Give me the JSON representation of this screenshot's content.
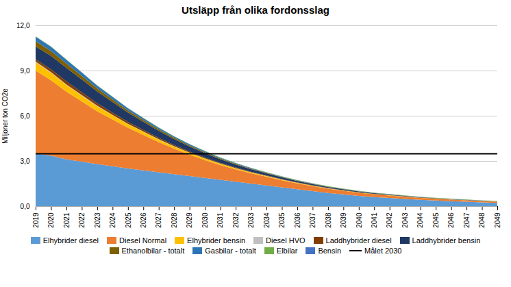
{
  "chart_data": {
    "type": "area",
    "stacked": true,
    "title": "Utsläpp från olika fordonsslag",
    "ylabel": "Miljoner ton CO2e",
    "x": [
      2019,
      2020,
      2021,
      2022,
      2023,
      2024,
      2025,
      2026,
      2027,
      2028,
      2029,
      2030,
      2031,
      2032,
      2033,
      2034,
      2035,
      2036,
      2037,
      2038,
      2039,
      2040,
      2041,
      2042,
      2043,
      2044,
      2045,
      2046,
      2047,
      2048,
      2049
    ],
    "xlim": [
      2019,
      2049
    ],
    "xticks": [
      2019,
      2020,
      2021,
      2022,
      2023,
      2024,
      2025,
      2026,
      2027,
      2028,
      2029,
      2030,
      2031,
      2032,
      2033,
      2034,
      2035,
      2036,
      2037,
      2038,
      2039,
      2040,
      2041,
      2042,
      2043,
      2044,
      2045,
      2046,
      2047,
      2048,
      2049
    ],
    "ylim": [
      0,
      12.0
    ],
    "yticks": [
      {
        "value": 0.0,
        "label": "0,0"
      },
      {
        "value": 3.0,
        "label": "3,0"
      },
      {
        "value": 6.0,
        "label": "6,0"
      },
      {
        "value": 9.0,
        "label": "9,0"
      },
      {
        "value": 12.0,
        "label": "12,0"
      }
    ],
    "grid": true,
    "legend": "bottom",
    "series": [
      {
        "name": "Elhybrider diesel",
        "color": "#5B9BD5",
        "values": [
          3.5,
          3.35,
          3.1,
          2.95,
          2.8,
          2.65,
          2.5,
          2.38,
          2.25,
          2.12,
          2.0,
          1.88,
          1.75,
          1.62,
          1.5,
          1.38,
          1.25,
          1.12,
          1.0,
          0.88,
          0.78,
          0.68,
          0.6,
          0.54,
          0.48,
          0.42,
          0.37,
          0.33,
          0.29,
          0.25,
          0.22
        ]
      },
      {
        "name": "Diesel Normal",
        "color": "#ED7D31",
        "values": [
          5.5,
          5.0,
          4.5,
          4.0,
          3.5,
          3.1,
          2.7,
          2.35,
          2.0,
          1.7,
          1.42,
          1.18,
          0.98,
          0.82,
          0.68,
          0.57,
          0.47,
          0.39,
          0.33,
          0.28,
          0.24,
          0.21,
          0.19,
          0.17,
          0.15,
          0.13,
          0.12,
          0.11,
          0.1,
          0.09,
          0.08
        ]
      },
      {
        "name": "Elhybrider bensin",
        "color": "#FFC000",
        "values": [
          0.55,
          0.5,
          0.44,
          0.38,
          0.33,
          0.28,
          0.24,
          0.2,
          0.17,
          0.14,
          0.12,
          0.1,
          0.085,
          0.072,
          0.061,
          0.052,
          0.044,
          0.037,
          0.031,
          0.026,
          0.022,
          0.019,
          0.016,
          0.014,
          0.012,
          0.01,
          0.009,
          0.008,
          0.007,
          0.006,
          0.005
        ]
      },
      {
        "name": "Diesel HVO",
        "color": "#BFBFBF",
        "values": [
          0.05,
          0.05,
          0.045,
          0.04,
          0.035,
          0.03,
          0.025,
          0.022,
          0.019,
          0.016,
          0.014,
          0.012,
          0.01,
          0.009,
          0.008,
          0.007,
          0.006,
          0.005,
          0.004,
          0.004,
          0.003,
          0.003,
          0.002,
          0.002,
          0.002,
          0.002,
          0.001,
          0.001,
          0.001,
          0.001,
          0.001
        ]
      },
      {
        "name": "Laddhybrider diesel",
        "color": "#833C00",
        "values": [
          0.15,
          0.18,
          0.2,
          0.19,
          0.17,
          0.15,
          0.13,
          0.11,
          0.095,
          0.082,
          0.07,
          0.06,
          0.051,
          0.043,
          0.037,
          0.031,
          0.026,
          0.022,
          0.019,
          0.016,
          0.014,
          0.012,
          0.01,
          0.009,
          0.008,
          0.007,
          0.006,
          0.005,
          0.004,
          0.004,
          0.003
        ]
      },
      {
        "name": "Laddhybrider bensin",
        "color": "#203864",
        "values": [
          0.85,
          0.9,
          0.9,
          0.85,
          0.78,
          0.7,
          0.62,
          0.54,
          0.47,
          0.4,
          0.34,
          0.29,
          0.24,
          0.2,
          0.17,
          0.14,
          0.12,
          0.1,
          0.085,
          0.072,
          0.061,
          0.052,
          0.044,
          0.037,
          0.031,
          0.026,
          0.022,
          0.019,
          0.016,
          0.014,
          0.012
        ]
      },
      {
        "name": "Ethanolbilar - totalt",
        "color": "#7F6000",
        "values": [
          0.35,
          0.32,
          0.28,
          0.24,
          0.2,
          0.17,
          0.14,
          0.12,
          0.1,
          0.085,
          0.072,
          0.061,
          0.052,
          0.044,
          0.037,
          0.031,
          0.026,
          0.022,
          0.019,
          0.016,
          0.014,
          0.012,
          0.01,
          0.009,
          0.008,
          0.007,
          0.006,
          0.005,
          0.004,
          0.004,
          0.003
        ]
      },
      {
        "name": "Gasbilar - totalt",
        "color": "#2E75B6",
        "values": [
          0.3,
          0.28,
          0.25,
          0.22,
          0.19,
          0.17,
          0.14,
          0.12,
          0.1,
          0.087,
          0.074,
          0.063,
          0.053,
          0.045,
          0.038,
          0.032,
          0.027,
          0.023,
          0.019,
          0.016,
          0.014,
          0.012,
          0.01,
          0.009,
          0.007,
          0.006,
          0.005,
          0.004,
          0.004,
          0.003,
          0.003
        ]
      },
      {
        "name": "Elbilar",
        "color": "#70AD47",
        "values": [
          0.02,
          0.02,
          0.02,
          0.02,
          0.02,
          0.02,
          0.02,
          0.02,
          0.02,
          0.02,
          0.02,
          0.02,
          0.02,
          0.02,
          0.02,
          0.02,
          0.02,
          0.02,
          0.02,
          0.02,
          0.02,
          0.02,
          0.02,
          0.02,
          0.02,
          0.02,
          0.02,
          0.02,
          0.02,
          0.02,
          0.02
        ]
      },
      {
        "name": "Bensin",
        "color": "#4472C4",
        "values": [
          null,
          null,
          null,
          null,
          null,
          null,
          null,
          null,
          null,
          null,
          null,
          null,
          null,
          null,
          null,
          null,
          null,
          null,
          null,
          null,
          null,
          null,
          null,
          null,
          null,
          null,
          null,
          null,
          null,
          null,
          null
        ]
      }
    ],
    "reference_lines": [
      {
        "name": "Målet 2030",
        "value": 3.5,
        "color": "#000000"
      }
    ]
  }
}
